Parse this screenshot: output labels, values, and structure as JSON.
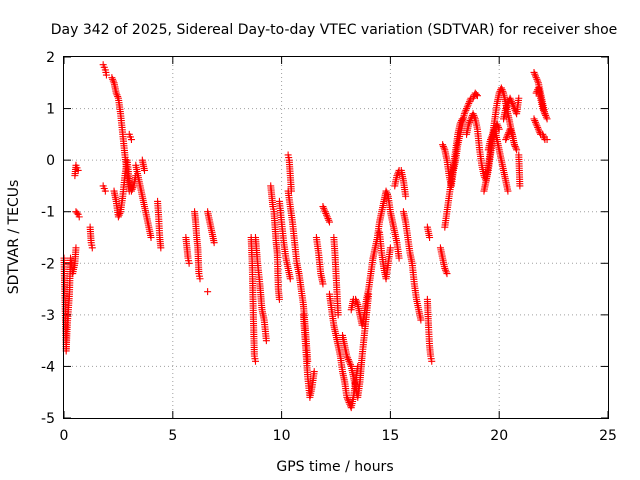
{
  "chart_data": {
    "type": "scatter",
    "title": "Day 342 of 2025, Sidereal Day-to-day VTEC variation (SDTVAR) for receiver shoe",
    "xlabel": "GPS time / hours",
    "ylabel": "SDTVAR / TECUs",
    "xlim": [
      0,
      25
    ],
    "ylim": [
      -5,
      2
    ],
    "xticks": [
      "0",
      "5",
      "10",
      "15",
      "20",
      "25"
    ],
    "yticks": [
      "-5",
      "-4",
      "-3",
      "-2",
      "-1",
      "0",
      "1",
      "2"
    ],
    "grid": true,
    "marker": "plus",
    "color": "#ff0000",
    "segments": [
      {
        "x": [
          0.0,
          0.1,
          0.15,
          0.25,
          0.3,
          0.4,
          0.5,
          0.55
        ],
        "y": [
          -1.9,
          -3.7,
          -3.2,
          -2.6,
          -1.9,
          -2.2,
          -2.0,
          -1.7
        ]
      },
      {
        "x": [
          0.5,
          0.55,
          0.6,
          0.65
        ],
        "y": [
          -0.3,
          -0.1,
          -0.15,
          -0.2
        ]
      },
      {
        "x": [
          0.55,
          0.65,
          0.7
        ],
        "y": [
          -1.0,
          -1.05,
          -1.1
        ]
      },
      {
        "x": [
          1.2,
          1.25,
          1.3
        ],
        "y": [
          -1.3,
          -1.6,
          -1.7
        ]
      },
      {
        "x": [
          1.8,
          1.85,
          1.9,
          1.95
        ],
        "y": [
          1.85,
          1.8,
          1.75,
          1.65
        ]
      },
      {
        "x": [
          1.8,
          1.85,
          1.9
        ],
        "y": [
          -0.5,
          -0.55,
          -0.6
        ]
      },
      {
        "x": [
          2.2,
          2.3,
          2.4,
          2.5,
          2.6,
          2.7,
          2.8,
          2.9,
          3.0
        ],
        "y": [
          1.6,
          1.5,
          1.3,
          1.2,
          0.9,
          0.5,
          0.1,
          -0.3,
          -0.6
        ]
      },
      {
        "x": [
          2.3,
          2.4,
          2.5,
          2.6,
          2.7,
          2.8,
          2.9,
          3.0,
          3.1,
          3.2,
          3.3
        ],
        "y": [
          -0.6,
          -0.8,
          -1.1,
          -1.0,
          -0.7,
          -0.3,
          0.0,
          -0.4,
          -0.6,
          -0.5,
          -0.3
        ]
      },
      {
        "x": [
          3.0,
          3.05,
          3.1
        ],
        "y": [
          0.5,
          0.45,
          0.4
        ]
      },
      {
        "x": [
          3.3,
          3.4,
          3.5,
          3.6,
          3.7,
          3.8,
          3.9,
          4.0
        ],
        "y": [
          -0.1,
          -0.3,
          -0.5,
          -0.7,
          -0.9,
          -1.1,
          -1.3,
          -1.5
        ]
      },
      {
        "x": [
          3.6,
          3.7
        ],
        "y": [
          0.0,
          -0.2
        ]
      },
      {
        "x": [
          4.3,
          4.35,
          4.4,
          4.45
        ],
        "y": [
          -0.8,
          -1.1,
          -1.5,
          -1.7
        ]
      },
      {
        "x": [
          5.6,
          5.65,
          5.7,
          5.75
        ],
        "y": [
          -1.5,
          -1.7,
          -1.9,
          -2.0
        ]
      },
      {
        "x": [
          6.0,
          6.05,
          6.1,
          6.15,
          6.2,
          6.25
        ],
        "y": [
          -1.0,
          -1.2,
          -1.5,
          -1.7,
          -2.2,
          -2.3
        ]
      },
      {
        "x": [
          6.6,
          6.7,
          6.8,
          6.9
        ],
        "y": [
          -1.0,
          -1.2,
          -1.4,
          -1.6
        ]
      },
      {
        "x": [
          6.6
        ],
        "y": [
          -2.55
        ]
      },
      {
        "x": [
          8.6,
          8.65,
          8.7,
          8.75,
          8.8
        ],
        "y": [
          -1.5,
          -2.0,
          -3.0,
          -3.8,
          -3.9
        ]
      },
      {
        "x": [
          8.8,
          8.9,
          9.0,
          9.1,
          9.2,
          9.3
        ],
        "y": [
          -1.5,
          -2.0,
          -2.4,
          -2.9,
          -3.1,
          -3.5
        ]
      },
      {
        "x": [
          9.5,
          9.55,
          9.6,
          9.65,
          9.7,
          9.75,
          9.8,
          9.85,
          9.9
        ],
        "y": [
          -0.5,
          -0.7,
          -0.9,
          -1.0,
          -1.3,
          -1.6,
          -1.8,
          -2.5,
          -2.7
        ]
      },
      {
        "x": [
          9.9,
          10.0,
          10.1,
          10.2,
          10.3,
          10.4
        ],
        "y": [
          -0.8,
          -1.2,
          -1.6,
          -1.9,
          -2.1,
          -2.3
        ]
      },
      {
        "x": [
          10.3,
          10.35,
          10.4,
          10.45
        ],
        "y": [
          0.1,
          0.0,
          -0.3,
          -0.6
        ]
      },
      {
        "x": [
          10.3,
          10.4,
          10.5,
          10.6,
          10.7,
          10.8,
          10.9,
          11.0,
          11.1,
          11.2
        ],
        "y": [
          -0.6,
          -0.9,
          -1.2,
          -1.6,
          -2.0,
          -2.2,
          -2.5,
          -2.8,
          -3.3,
          -3.9
        ]
      },
      {
        "x": [
          11.0,
          11.1,
          11.2,
          11.3,
          11.4,
          11.5
        ],
        "y": [
          -3.0,
          -3.6,
          -4.2,
          -4.6,
          -4.4,
          -4.1
        ]
      },
      {
        "x": [
          11.6,
          11.7,
          11.8,
          11.9
        ],
        "y": [
          -1.5,
          -1.8,
          -2.2,
          -2.4
        ]
      },
      {
        "x": [
          11.9,
          12.0,
          12.1,
          12.2
        ],
        "y": [
          -0.9,
          -1.0,
          -1.1,
          -1.2
        ]
      },
      {
        "x": [
          12.2,
          12.3,
          12.4,
          12.5,
          12.6,
          12.7,
          12.8,
          12.9,
          13.0,
          13.1,
          13.2,
          13.3,
          13.4,
          13.5
        ],
        "y": [
          -2.6,
          -2.9,
          -3.2,
          -3.4,
          -3.6,
          -3.8,
          -4.1,
          -4.3,
          -4.6,
          -4.7,
          -4.8,
          -4.6,
          -4.3,
          -4.0
        ]
      },
      {
        "x": [
          12.8,
          12.9,
          13.0,
          13.1,
          13.2,
          13.3,
          13.4,
          13.5,
          13.6,
          13.7,
          13.8,
          13.9,
          14.0
        ],
        "y": [
          -3.4,
          -3.6,
          -3.8,
          -3.9,
          -4.0,
          -4.2,
          -4.4,
          -4.6,
          -4.3,
          -3.8,
          -3.4,
          -3.0,
          -2.6
        ]
      },
      {
        "x": [
          13.2,
          13.3,
          13.4,
          13.5,
          13.6,
          13.7,
          13.8,
          13.9,
          14.0,
          14.1,
          14.2
        ],
        "y": [
          -2.9,
          -2.7,
          -2.7,
          -2.8,
          -3.0,
          -3.2,
          -3.0,
          -2.7,
          -2.5,
          -2.2,
          -1.9
        ]
      },
      {
        "x": [
          12.4,
          12.45,
          12.5,
          12.55,
          12.6
        ],
        "y": [
          -1.5,
          -1.8,
          -2.2,
          -2.6,
          -3.0
        ]
      },
      {
        "x": [
          14.2,
          14.3,
          14.4,
          14.5,
          14.6,
          14.7,
          14.8,
          14.9,
          15.0,
          15.1,
          15.2,
          15.3,
          15.4
        ],
        "y": [
          -1.9,
          -1.7,
          -1.5,
          -1.2,
          -1.0,
          -0.8,
          -0.6,
          -0.7,
          -1.0,
          -1.2,
          -1.4,
          -1.6,
          -1.9
        ]
      },
      {
        "x": [
          14.5,
          14.6,
          14.7,
          14.8,
          14.9,
          15.0
        ],
        "y": [
          -1.4,
          -1.8,
          -2.1,
          -2.3,
          -2.0,
          -1.7
        ]
      },
      {
        "x": [
          15.2,
          15.3,
          15.4,
          15.5,
          15.6,
          15.7
        ],
        "y": [
          -0.5,
          -0.3,
          -0.2,
          -0.2,
          -0.4,
          -0.7
        ]
      },
      {
        "x": [
          15.6,
          15.7,
          15.8,
          15.9,
          16.0,
          16.1,
          16.2,
          16.3,
          16.4
        ],
        "y": [
          -1.0,
          -1.2,
          -1.5,
          -1.8,
          -2.0,
          -2.4,
          -2.7,
          -2.9,
          -3.1
        ]
      },
      {
        "x": [
          16.7,
          16.75,
          16.8,
          16.85,
          16.9
        ],
        "y": [
          -2.7,
          -3.2,
          -3.6,
          -3.8,
          -3.9
        ]
      },
      {
        "x": [
          16.7,
          16.8
        ],
        "y": [
          -1.3,
          -1.5
        ]
      },
      {
        "x": [
          17.3,
          17.4,
          17.5,
          17.6
        ],
        "y": [
          -1.7,
          -1.9,
          -2.1,
          -2.2
        ]
      },
      {
        "x": [
          17.4,
          17.5,
          17.6,
          17.7,
          17.8,
          17.9,
          18.0,
          18.1,
          18.2,
          18.3,
          18.4,
          18.5,
          18.6,
          18.7,
          18.8,
          18.9,
          19.0
        ],
        "y": [
          0.3,
          0.2,
          0.0,
          -0.3,
          -0.5,
          -0.2,
          0.0,
          0.3,
          0.5,
          0.7,
          0.9,
          1.0,
          1.1,
          1.2,
          1.2,
          1.3,
          1.25
        ]
      },
      {
        "x": [
          17.5,
          17.6,
          17.7,
          17.8,
          17.9,
          18.0,
          18.1,
          18.2,
          18.3
        ],
        "y": [
          -1.3,
          -1.0,
          -0.7,
          -0.4,
          -0.1,
          0.2,
          0.5,
          0.7,
          0.8
        ]
      },
      {
        "x": [
          18.5,
          18.6,
          18.7,
          18.8,
          18.9,
          19.0,
          19.1,
          19.2,
          19.3,
          19.4,
          19.5,
          19.6,
          19.7,
          19.8,
          19.9,
          20.0
        ],
        "y": [
          0.5,
          0.7,
          0.8,
          0.9,
          0.8,
          0.6,
          0.2,
          -0.1,
          -0.3,
          -0.4,
          -0.2,
          0.1,
          0.4,
          0.6,
          0.7,
          0.6
        ]
      },
      {
        "x": [
          19.3,
          19.4,
          19.5,
          19.6,
          19.7,
          19.8,
          19.9,
          20.0,
          20.1,
          20.2,
          20.3,
          20.4,
          20.5,
          20.6,
          20.7,
          20.8
        ],
        "y": [
          -0.6,
          -0.4,
          -0.1,
          0.2,
          0.5,
          0.8,
          1.1,
          1.3,
          1.4,
          1.3,
          1.1,
          0.9,
          0.7,
          0.5,
          0.3,
          0.2
        ]
      },
      {
        "x": [
          19.5,
          19.6,
          19.7,
          19.8,
          19.9,
          20.0,
          20.1,
          20.2,
          20.3,
          20.4
        ],
        "y": [
          0.2,
          0.4,
          0.5,
          0.6,
          0.4,
          0.2,
          0.0,
          -0.2,
          -0.4,
          -0.6
        ]
      },
      {
        "x": [
          20.2,
          20.3,
          20.4,
          20.5,
          20.6,
          20.7,
          20.8,
          20.9
        ],
        "y": [
          0.8,
          1.0,
          1.1,
          1.2,
          1.1,
          1.0,
          0.9,
          1.2
        ]
      },
      {
        "x": [
          20.3,
          20.4,
          20.5,
          20.6,
          20.7
        ],
        "y": [
          0.4,
          0.5,
          0.6,
          0.5,
          0.3
        ]
      },
      {
        "x": [
          20.9,
          20.95
        ],
        "y": [
          0.1,
          -0.5
        ]
      },
      {
        "x": [
          21.6,
          21.7,
          21.8,
          21.9,
          22.0,
          22.1,
          22.2
        ],
        "y": [
          1.7,
          1.6,
          1.5,
          1.3,
          1.1,
          0.9,
          0.8
        ]
      },
      {
        "x": [
          21.6,
          21.7,
          21.8,
          21.9,
          22.0,
          22.1,
          22.2
        ],
        "y": [
          0.8,
          0.7,
          0.6,
          0.5,
          0.5,
          0.4,
          0.4
        ]
      },
      {
        "x": [
          21.7,
          21.8,
          21.9,
          22.0,
          22.1
        ],
        "y": [
          1.3,
          1.4,
          1.2,
          1.0,
          0.9
        ]
      }
    ]
  }
}
